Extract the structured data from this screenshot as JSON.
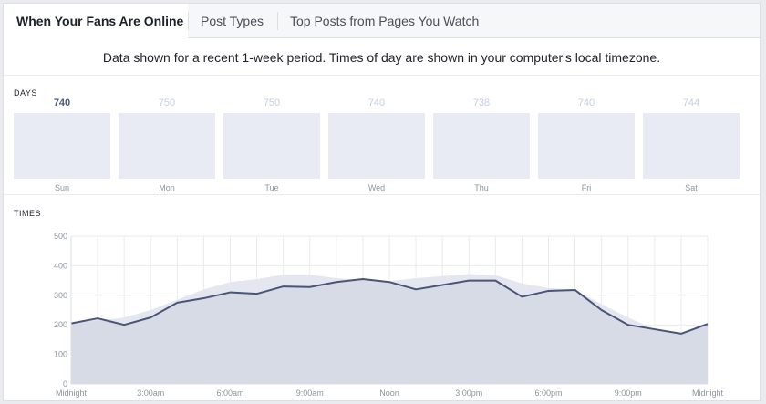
{
  "tabs": [
    {
      "label": "When Your Fans Are Online",
      "active": true
    },
    {
      "label": "Post Types",
      "active": false
    },
    {
      "label": "Top Posts from Pages You Watch",
      "active": false
    }
  ],
  "notice": "Data shown for a recent 1-week period. Times of day are shown in your computer's local timezone.",
  "days_section": {
    "label": "DAYS",
    "items": [
      {
        "day": "Sun",
        "count": "740",
        "selected": true
      },
      {
        "day": "Mon",
        "count": "750",
        "selected": false
      },
      {
        "day": "Tue",
        "count": "750",
        "selected": false
      },
      {
        "day": "Wed",
        "count": "740",
        "selected": false
      },
      {
        "day": "Thu",
        "count": "738",
        "selected": false
      },
      {
        "day": "Fri",
        "count": "740",
        "selected": false
      },
      {
        "day": "Sat",
        "count": "744",
        "selected": false
      }
    ]
  },
  "times_section": {
    "label": "TIMES"
  },
  "colors": {
    "line": "#4b5478",
    "area_selected": "#d3d7e2",
    "area_average": "#e4e7ef",
    "grid": "#e9ebee"
  },
  "chart_data": {
    "type": "line",
    "ylim": [
      0,
      500
    ],
    "yticks": [
      0,
      100,
      200,
      300,
      400,
      500
    ],
    "xticks": [
      {
        "hour": 0,
        "label": "Midnight"
      },
      {
        "hour": 3,
        "label": "3:00am"
      },
      {
        "hour": 6,
        "label": "6:00am"
      },
      {
        "hour": 9,
        "label": "9:00am"
      },
      {
        "hour": 12,
        "label": "Noon"
      },
      {
        "hour": 15,
        "label": "3:00pm"
      },
      {
        "hour": 18,
        "label": "6:00pm"
      },
      {
        "hour": 21,
        "label": "9:00pm"
      },
      {
        "hour": 24,
        "label": "Midnight"
      }
    ],
    "x": [
      0,
      1,
      2,
      3,
      4,
      5,
      6,
      7,
      8,
      9,
      10,
      11,
      12,
      13,
      14,
      15,
      16,
      17,
      18,
      19,
      20,
      21,
      22,
      23,
      24
    ],
    "series": [
      {
        "values": [
          205,
          222,
          200,
          225,
          275,
          290,
          310,
          305,
          330,
          328,
          345,
          355,
          345,
          320,
          335,
          350,
          350,
          295,
          315,
          318,
          250,
          200,
          185,
          170,
          203
        ]
      },
      {
        "values": [
          205,
          213,
          225,
          250,
          285,
          320,
          345,
          355,
          370,
          370,
          358,
          352,
          348,
          358,
          365,
          372,
          368,
          340,
          325,
          318,
          270,
          225,
          185,
          173,
          203
        ]
      }
    ]
  }
}
